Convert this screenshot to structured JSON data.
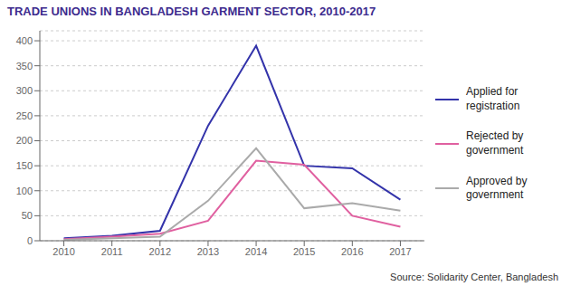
{
  "chart_data": {
    "type": "line",
    "title": "TRADE UNIONS IN BANGLADESH GARMENT SECTOR, 2010-2017",
    "annotations": [
      "Source: Solidarity Center, Bangladesh"
    ],
    "x": [
      2010,
      2011,
      2012,
      2013,
      2014,
      2015,
      2016,
      2017
    ],
    "series": [
      {
        "name": "Applied for\nregistration",
        "color": "#3333aa",
        "values": [
          5,
          10,
          20,
          230,
          390,
          150,
          145,
          82
        ]
      },
      {
        "name": "Rejected by\ngovernment",
        "color": "#e060a0",
        "values": [
          3,
          8,
          14,
          40,
          160,
          152,
          50,
          28
        ]
      },
      {
        "name": "Approved by\ngovernment",
        "color": "#aaaaaa",
        "values": [
          2,
          5,
          8,
          80,
          185,
          65,
          75,
          60
        ]
      }
    ],
    "xlim": [
      2009.5,
      2017.5
    ],
    "xticks": [
      2010,
      2011,
      2012,
      2013,
      2014,
      2015,
      2016,
      2017
    ],
    "ylim": [
      0,
      420
    ],
    "yticks": [
      0,
      50,
      100,
      150,
      200,
      250,
      300,
      350,
      400
    ],
    "grid": true,
    "legend": "right",
    "title_color": "#3d2b8e"
  }
}
